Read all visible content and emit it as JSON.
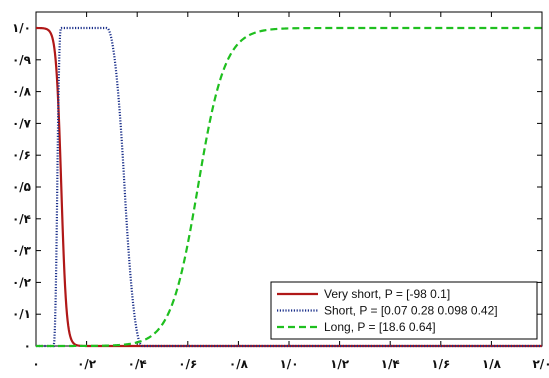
{
  "chart_data": {
    "type": "line",
    "xlim": [
      0,
      2.0
    ],
    "ylim": [
      0,
      1.0
    ],
    "xticks": [
      0,
      0.2,
      0.4,
      0.6,
      0.8,
      1.0,
      1.2,
      1.4,
      1.6,
      1.8,
      2.0
    ],
    "yticks": [
      0,
      0.1,
      0.2,
      0.3,
      0.4,
      0.5,
      0.6,
      0.7,
      0.8,
      0.9,
      1.0
    ],
    "xtick_labels": [
      "۰",
      "۰/۲",
      "۰/۴",
      "۰/۶",
      "۰/۸",
      "۱/۰",
      "۱/۲",
      "۱/۴",
      "۱/۶",
      "۱/۸",
      "۲/۰"
    ],
    "ytick_labels": [
      "۰",
      "۰/۱",
      "۰/۲",
      "۰/۳",
      "۰/۴",
      "۰/۵",
      "۰/۶",
      "۰/۷",
      "۰/۸",
      "۰/۹",
      "۱/۰"
    ],
    "legend_position": "bottom-right",
    "grid": false,
    "series": [
      {
        "name": "Very short, P = [-98 0.1]",
        "membership": "sigmoid",
        "params": [
          -98,
          0.1
        ],
        "color": "#b01818",
        "style": "solid"
      },
      {
        "name": "Short, P = [0.07 0.28 0.098 0.42]",
        "membership": "pimf",
        "params": [
          0.07,
          0.28,
          0.098,
          0.42
        ],
        "color": "#1a2f8a",
        "style": "dotted"
      },
      {
        "name": "Long, P = [18.6 0.64]",
        "membership": "sigmoid",
        "params": [
          18.6,
          0.64
        ],
        "color": "#1fbf1f",
        "style": "dashed"
      }
    ]
  }
}
